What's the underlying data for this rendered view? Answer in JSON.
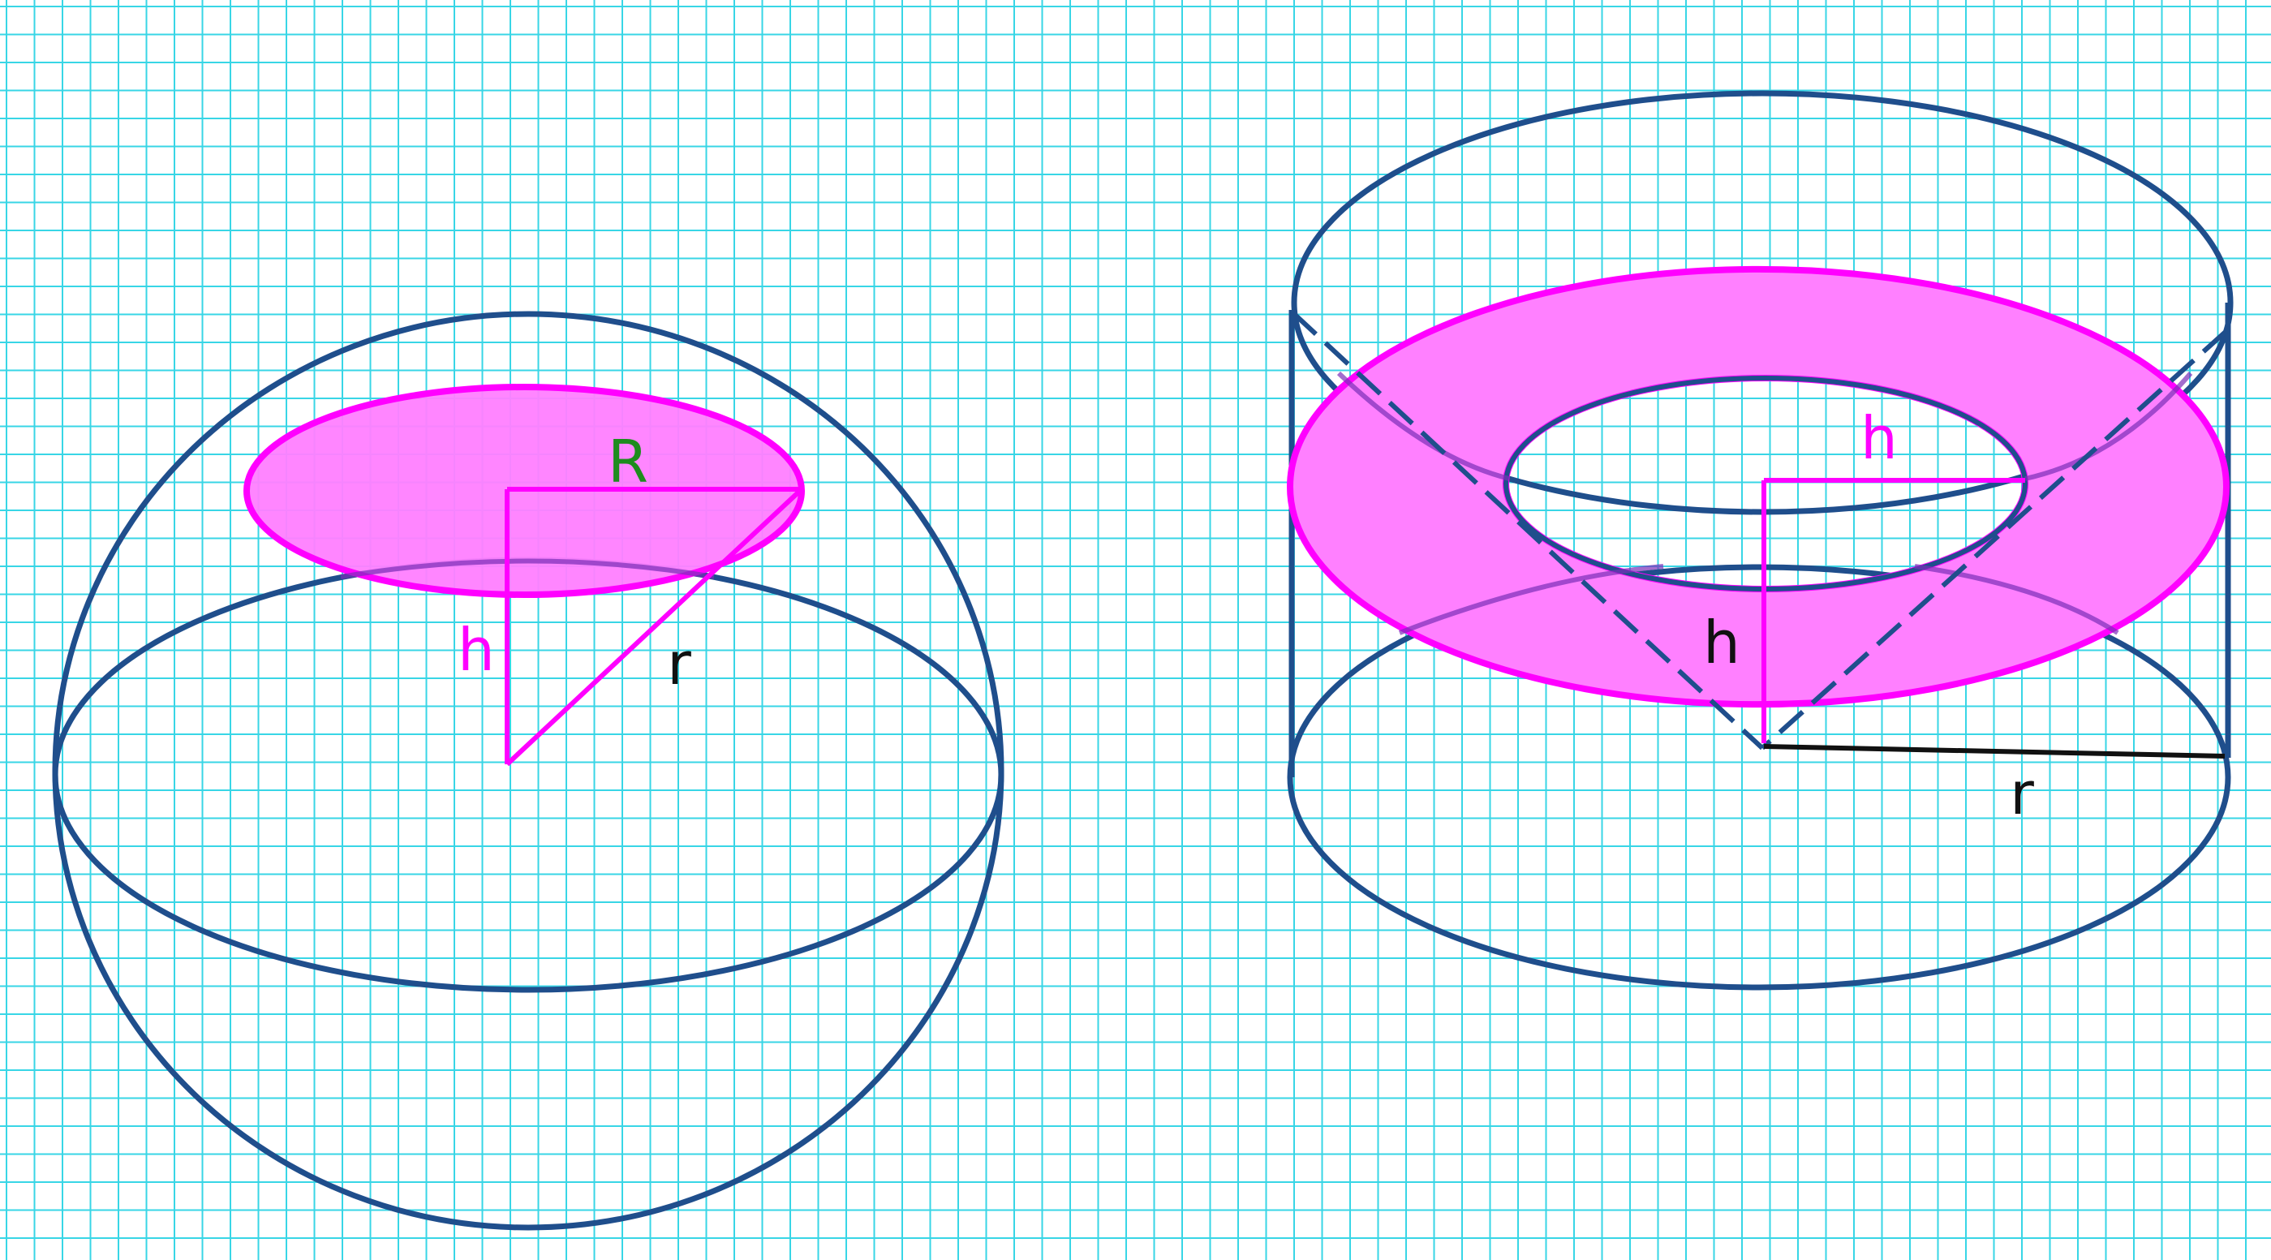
{
  "colors": {
    "grid": "#38d6e6",
    "outline": "#1f4e8c",
    "section": "#ff00ff",
    "section_fill": "#ff80ff",
    "label_green": "#1e8c1e",
    "label_black": "#111111"
  },
  "left_figure": {
    "label_R": "R",
    "label_h": "h",
    "label_r": "r"
  },
  "right_figure": {
    "label_h_top": "h",
    "label_h": "h",
    "label_r": "r"
  }
}
